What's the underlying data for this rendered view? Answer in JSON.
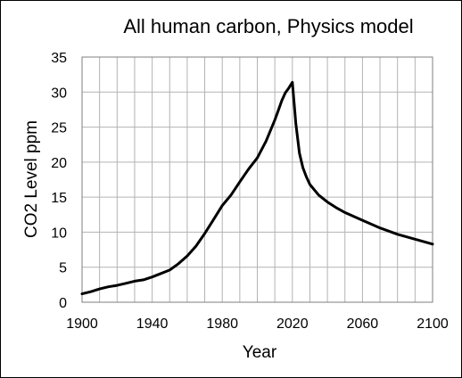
{
  "chart_data": {
    "type": "line",
    "title": "All human carbon, Physics model",
    "xlabel": "Year",
    "ylabel": "CO2 Level ppm",
    "xlim": [
      1900,
      2100
    ],
    "ylim": [
      0,
      35
    ],
    "x_ticks": [
      "1900",
      "1940",
      "1980",
      "2020",
      "2060",
      "2100"
    ],
    "x_tick_values": [
      1900,
      1940,
      1980,
      2020,
      2060,
      2100
    ],
    "y_ticks": [
      "0",
      "5",
      "10",
      "15",
      "20",
      "25",
      "30",
      "35"
    ],
    "y_tick_values": [
      0,
      5,
      10,
      15,
      20,
      25,
      30,
      35
    ],
    "grid": true,
    "legend": "none",
    "line_color": "#000000",
    "grid_color": "#b3b3b3",
    "series": [
      {
        "x": [
          1900,
          1905,
          1910,
          1915,
          1920,
          1925,
          1930,
          1935,
          1940,
          1945,
          1950,
          1955,
          1960,
          1965,
          1970,
          1975,
          1980,
          1985,
          1990,
          1995,
          2000,
          2005,
          2010,
          2012,
          2014,
          2016,
          2018,
          2020,
          2022,
          2024,
          2026,
          2028,
          2030,
          2035,
          2040,
          2045,
          2050,
          2060,
          2070,
          2080,
          2090,
          2100
        ],
        "y": [
          1.2,
          1.5,
          1.9,
          2.2,
          2.4,
          2.7,
          3.0,
          3.2,
          3.6,
          4.1,
          4.6,
          5.5,
          6.6,
          8.0,
          9.8,
          11.8,
          13.8,
          15.3,
          17.2,
          19.0,
          20.6,
          23.0,
          26.0,
          27.4,
          28.8,
          29.9,
          30.6,
          31.4,
          25.5,
          21.3,
          19.2,
          17.9,
          16.8,
          15.3,
          14.3,
          13.5,
          12.8,
          11.7,
          10.6,
          9.7,
          9.0,
          8.3
        ]
      }
    ]
  }
}
